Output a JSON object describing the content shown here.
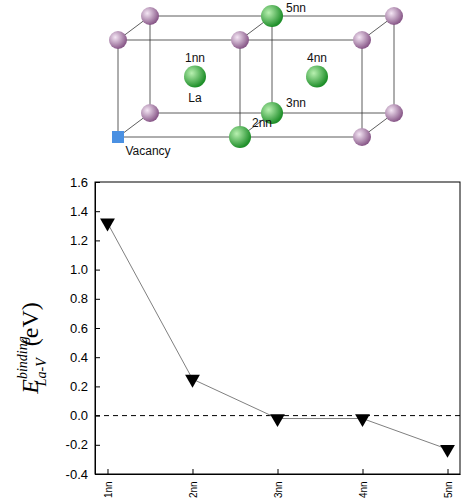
{
  "chart_data": {
    "type": "line",
    "categories": [
      "1nn",
      "2nn",
      "3nn",
      "4nn",
      "5nn"
    ],
    "values": [
      1.32,
      0.25,
      -0.02,
      -0.02,
      -0.23
    ],
    "color": "#000000",
    "marker": "triangle-down",
    "ylim": [
      -0.4,
      1.6
    ],
    "yticks": [
      -0.4,
      -0.2,
      {
        "value": 0,
        "label": "0.0"
      },
      0.2,
      0.4,
      0.6,
      0.8,
      {
        "value": 1,
        "label": "1.0"
      },
      1.2,
      1.4,
      1.6
    ],
    "y_label": {
      "base": "E",
      "sup": "binding",
      "sub": "La-V",
      "unit": "(eV)"
    },
    "reference_line": {
      "value": 0,
      "line_style": "dashed"
    }
  },
  "diagram": {
    "solute": "La",
    "vacancy": "Vacancy",
    "neighbors": [
      "1nn",
      "2nn",
      "3nn",
      "4nn",
      "5nn"
    ]
  }
}
